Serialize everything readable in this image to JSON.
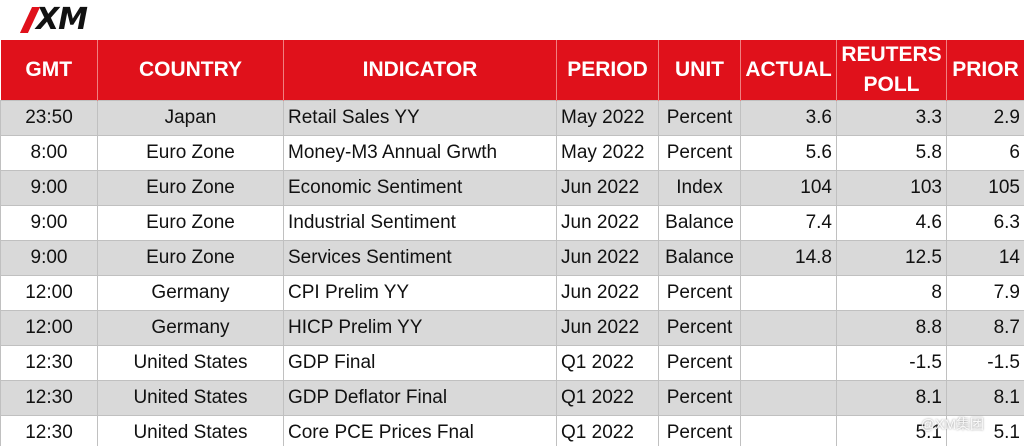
{
  "logo": "XM",
  "table": {
    "header": [
      "GMT",
      "COUNTRY",
      "INDICATOR",
      "PERIOD",
      "UNIT",
      "ACTUAL",
      "REUTERS POLL",
      "PRIOR"
    ],
    "rows": [
      [
        "23:50",
        "Japan",
        "Retail Sales YY",
        "May 2022",
        "Percent",
        "3.6",
        "3.3",
        "2.9"
      ],
      [
        "8:00",
        "Euro Zone",
        "Money-M3 Annual Grwth",
        "May 2022",
        "Percent",
        "5.6",
        "5.8",
        "6"
      ],
      [
        "9:00",
        "Euro Zone",
        "Economic Sentiment",
        "Jun 2022",
        "Index",
        "104",
        "103",
        "105"
      ],
      [
        "9:00",
        "Euro Zone",
        "Industrial Sentiment",
        "Jun 2022",
        "Balance",
        "7.4",
        "4.6",
        "6.3"
      ],
      [
        "9:00",
        "Euro Zone",
        "Services Sentiment",
        "Jun 2022",
        "Balance",
        "14.8",
        "12.5",
        "14"
      ],
      [
        "12:00",
        "Germany",
        "CPI Prelim YY",
        "Jun 2022",
        "Percent",
        null,
        "8",
        "7.9"
      ],
      [
        "12:00",
        "Germany",
        "HICP Prelim YY",
        "Jun 2022",
        "Percent",
        null,
        "8.8",
        "8.7"
      ],
      [
        "12:30",
        "United States",
        "GDP Final",
        "Q1 2022",
        "Percent",
        null,
        "-1.5",
        "-1.5"
      ],
      [
        "12:30",
        "United States",
        "GDP Deflator Final",
        "Q1 2022",
        "Percent",
        null,
        "8.1",
        "8.1"
      ],
      [
        "12:30",
        "United States",
        "Core PCE Prices Fnal",
        "Q1 2022",
        "Percent",
        null,
        "5.1",
        "5.1"
      ]
    ]
  },
  "watermark": "@XM集团"
}
